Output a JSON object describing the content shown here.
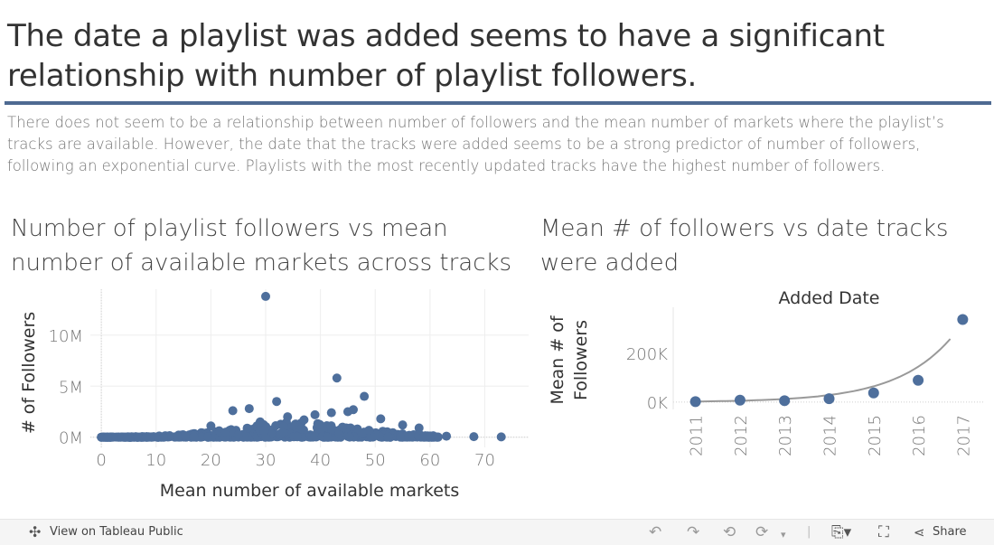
{
  "header": {
    "title": "The date a playlist was added seems to have a significant relationship with number of playlist followers.",
    "subtitle": "There does not seem to be a relationship between number of followers and the mean number of markets where the playlist’s tracks are available. However, the date that the tracks were added seems to be a strong predictor of number of followers, following an exponential curve. Playlists with the most recently updated tracks have the highest number of followers."
  },
  "chart_data": [
    {
      "type": "scatter",
      "title": "Number of playlist followers vs mean number of available markets across tracks",
      "xlabel": "Mean number of available markets",
      "ylabel": "# of Followers",
      "xlim": [
        -2,
        78
      ],
      "ylim": [
        -1000000,
        14500000
      ],
      "x_ticks": [
        0,
        10,
        20,
        30,
        40,
        50,
        60,
        70
      ],
      "x_tick_labels": [
        "0",
        "10",
        "20",
        "30",
        "40",
        "50",
        "60",
        "70"
      ],
      "y_ticks": [
        0,
        5000000,
        10000000
      ],
      "y_tick_labels": [
        "0M",
        "5M",
        "10M"
      ],
      "grid": true,
      "color": "#4e6f9c",
      "outliers": [
        {
          "x": 30,
          "y": 13800000
        },
        {
          "x": 43,
          "y": 5800000
        },
        {
          "x": 48,
          "y": 4000000
        },
        {
          "x": 32,
          "y": 3500000
        },
        {
          "x": 27,
          "y": 2800000
        },
        {
          "x": 24,
          "y": 2600000
        },
        {
          "x": 42,
          "y": 2400000
        },
        {
          "x": 45,
          "y": 2500000
        },
        {
          "x": 39,
          "y": 2200000
        },
        {
          "x": 46,
          "y": 2700000
        },
        {
          "x": 34,
          "y": 2000000
        },
        {
          "x": 51,
          "y": 1800000
        },
        {
          "x": 29,
          "y": 1500000
        },
        {
          "x": 37,
          "y": 1700000
        },
        {
          "x": 55,
          "y": 1200000
        },
        {
          "x": 20,
          "y": 1100000
        },
        {
          "x": 58,
          "y": 900000
        },
        {
          "x": 63,
          "y": 100000
        },
        {
          "x": 68,
          "y": 50000
        },
        {
          "x": 73,
          "y": 30000
        }
      ],
      "cluster": {
        "x_min": 0,
        "x_max": 62,
        "y_max": 1500000,
        "point_count": 520
      }
    },
    {
      "type": "line",
      "title": "Mean # of followers vs date tracks were added",
      "header_label": "Added Date",
      "xlabel": "",
      "ylabel": "Mean # of Followers",
      "categories": [
        "2011",
        "2012",
        "2013",
        "2014",
        "2015",
        "2016",
        "2017"
      ],
      "values": [
        2000,
        8000,
        6000,
        14000,
        38000,
        90000,
        340000
      ],
      "ylim": [
        -30000,
        390000
      ],
      "y_ticks": [
        0,
        200000
      ],
      "y_tick_labels": [
        "0K",
        "200K"
      ],
      "trend": {
        "type": "exponential",
        "a": 2600,
        "b": 0.805,
        "x0": 2011,
        "x_end": 2016.72
      },
      "color": "#4e6f9c",
      "trend_color": "#999999"
    }
  ],
  "toolbar": {
    "view_label": "View on Tableau Public",
    "share_label": "Share",
    "icons": [
      "tableau-logo-icon",
      "undo-icon",
      "redo-icon",
      "revert-icon",
      "refresh-icon",
      "download-icon",
      "fullscreen-icon",
      "share-icon"
    ]
  }
}
